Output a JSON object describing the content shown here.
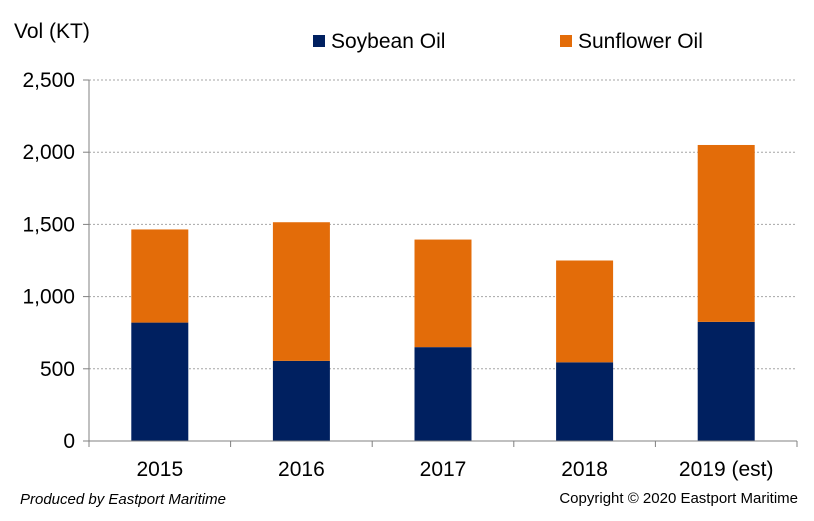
{
  "chart_data": {
    "type": "bar",
    "stacked": true,
    "ylabel": "Vol (KT)",
    "categories": [
      "2015",
      "2016",
      "2017",
      "2018",
      "2019 (est)"
    ],
    "series": [
      {
        "name": "Soybean Oil",
        "color": "#002060",
        "values": [
          820,
          555,
          650,
          545,
          825
        ]
      },
      {
        "name": "Sunflower Oil",
        "color": "#E36C09",
        "values": [
          645,
          960,
          745,
          705,
          1225
        ]
      }
    ],
    "ylim": [
      0,
      2500
    ],
    "yticks": [
      0,
      500,
      1000,
      1500,
      2000,
      2500
    ],
    "ytick_labels": [
      "0",
      "500",
      "1,000",
      "1,500",
      "2,000",
      "2,500"
    ],
    "grid": true,
    "legend": "top"
  },
  "footer": {
    "credit": "Produced by Eastport Maritime",
    "copyright": "Copyright © 2020 Eastport Maritime"
  }
}
